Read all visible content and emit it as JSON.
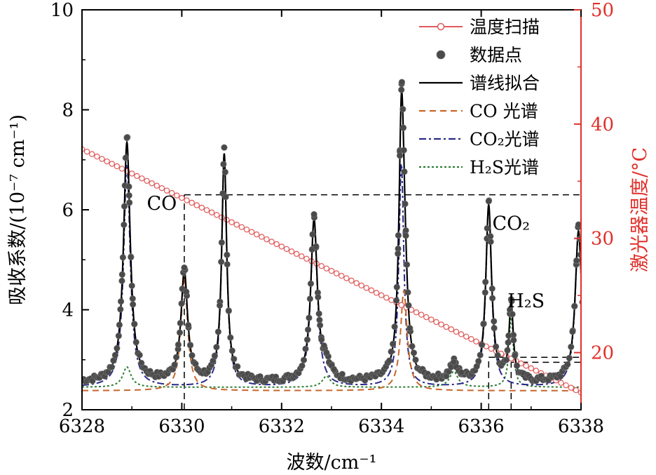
{
  "chart_data": {
    "type": "line",
    "xlabel": "波数/cm⁻¹",
    "ylabel_left": "吸收系数/(10⁻⁷ cm⁻¹)",
    "ylabel_right": "激光器温度/°C",
    "xlim": [
      6328,
      6338
    ],
    "ylim_left": [
      2,
      10
    ],
    "ylim_right": [
      15,
      50
    ],
    "x_ticks": [
      "6328",
      "6330",
      "6332",
      "6334",
      "6336",
      "6338"
    ],
    "y_ticks_left": [
      "2",
      "4",
      "6",
      "8",
      "10"
    ],
    "y_ticks_right": [
      "20",
      "30",
      "40",
      "50"
    ],
    "colors": {
      "temp": "#e05a5a",
      "data": "#555555",
      "fit": "#000000",
      "co": "#c8662a",
      "co2": "#2a2a8a",
      "h2s": "#2e7d32",
      "right_axis": "#e0302a"
    },
    "legend": [
      {
        "key": "temp",
        "label": "温度扫描",
        "style": "line-circle"
      },
      {
        "key": "data",
        "label": "数据点",
        "style": "dot"
      },
      {
        "key": "fit",
        "label": "谱线拟合",
        "style": "solid"
      },
      {
        "key": "co",
        "label": "CO 光谱",
        "style": "dash"
      },
      {
        "key": "co2",
        "label": "CO₂光谱",
        "style": "dashdot"
      },
      {
        "key": "h2s",
        "label": "H₂S光谱",
        "style": "dot-dash"
      }
    ],
    "annotations": [
      {
        "text": "CO",
        "x": 6329.6,
        "y": 6.0
      },
      {
        "text": "CO₂",
        "x": 6336.6,
        "y": 5.6
      },
      {
        "text": "H₂S",
        "x": 6336.9,
        "y": 4.05
      }
    ],
    "temperature_scan": {
      "x": [
        6328,
        6338
      ],
      "temp": [
        37.8,
        16.5
      ]
    },
    "baseline": 2.55,
    "peaks": {
      "co": [
        {
          "center": 6330.05,
          "amp": 2.25,
          "width": 0.08
        },
        {
          "center": 6334.45,
          "amp": 2.0,
          "width": 0.08
        }
      ],
      "co2": [
        {
          "center": 6328.9,
          "amp": 4.45,
          "width": 0.08
        },
        {
          "center": 6330.85,
          "amp": 4.65,
          "width": 0.06
        },
        {
          "center": 6332.65,
          "amp": 3.3,
          "width": 0.08
        },
        {
          "center": 6334.4,
          "amp": 4.45,
          "width": 0.06
        },
        {
          "center": 6336.15,
          "amp": 3.6,
          "width": 0.07
        },
        {
          "center": 6337.95,
          "amp": 3.1,
          "width": 0.08
        }
      ],
      "h2s": [
        {
          "center": 6328.9,
          "amp": 0.45,
          "width": 0.1
        },
        {
          "center": 6332.9,
          "amp": 0.25,
          "width": 0.1
        },
        {
          "center": 6335.45,
          "amp": 0.35,
          "width": 0.1
        },
        {
          "center": 6336.6,
          "amp": 1.6,
          "width": 0.05
        }
      ]
    },
    "reference_lines": [
      {
        "from_x": 6330.05,
        "y": 6.3,
        "to_x": 6338
      },
      {
        "x": 6330.05,
        "from_y": 2.0,
        "to_y": 6.3
      },
      {
        "from_x": 6336.15,
        "y": 3.05,
        "to_x": 6338
      },
      {
        "from_x": 6336.6,
        "y": 2.95,
        "to_x": 6338
      },
      {
        "x": 6336.15,
        "from_y": 2.0,
        "to_y": 3.05
      },
      {
        "x": 6336.6,
        "from_y": 2.0,
        "to_y": 2.95
      }
    ]
  }
}
